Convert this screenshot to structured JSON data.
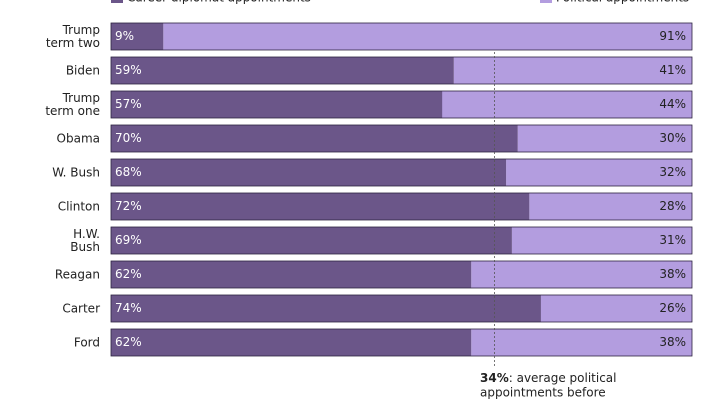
{
  "chart_data": {
    "type": "stacked-barh",
    "categories": [
      "Trump\nterm two",
      "Biden",
      "Trump\nterm one",
      "Obama",
      "W. Bush",
      "Clinton",
      "H.W.\nBush",
      "Reagan",
      "Carter",
      "Ford"
    ],
    "series": [
      {
        "name": "Career diplomat appointments",
        "color": "#6b5689",
        "values": [
          9,
          59,
          57,
          70,
          68,
          72,
          69,
          62,
          74,
          62
        ],
        "value_labels": [
          "9%",
          "59%",
          "57%",
          "70%",
          "68%",
          "72%",
          "69%",
          "62%",
          "74%",
          "62%"
        ]
      },
      {
        "name": "Political appointments",
        "color": "#b39ddf",
        "values": [
          91,
          41,
          44,
          30,
          32,
          28,
          31,
          38,
          26,
          38
        ],
        "value_labels": [
          "91%",
          "41%",
          "44%",
          "30%",
          "32%",
          "28%",
          "31%",
          "38%",
          "26%",
          "38%"
        ]
      }
    ],
    "xlim": [
      0,
      100
    ],
    "annotation": {
      "value": 34,
      "label": "34%",
      "text": [
        ": average political",
        "appointments before"
      ]
    }
  }
}
